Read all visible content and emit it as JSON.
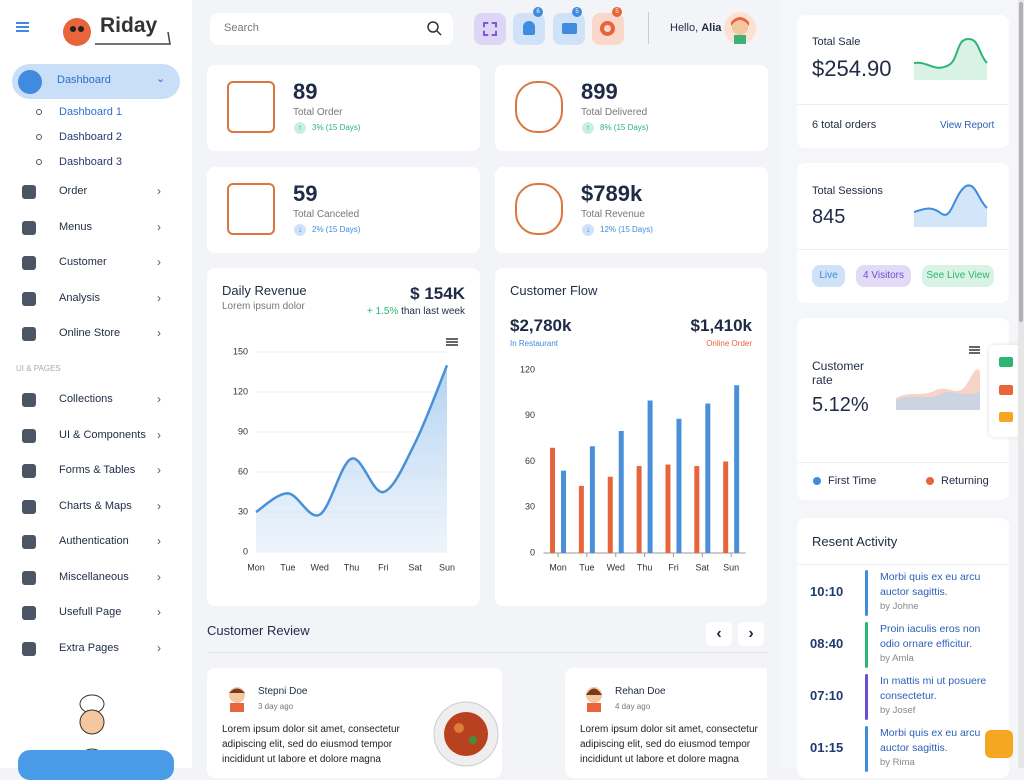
{
  "sidebar": {
    "brand": "Riday",
    "menu": [
      {
        "label": "Dashboard",
        "children": [
          "Dashboard 1",
          "Dashboard 2",
          "Dashboard 3"
        ]
      },
      {
        "label": "Order"
      },
      {
        "label": "Menus"
      },
      {
        "label": "Customer"
      },
      {
        "label": "Analysis"
      },
      {
        "label": "Online Store"
      }
    ],
    "section": "UI & PAGES",
    "pages": [
      "Collections",
      "UI & Components",
      "Forms & Tables",
      "Charts & Maps",
      "Authentication",
      "Miscellaneous",
      "Usefull Page",
      "Extra Pages"
    ]
  },
  "header": {
    "search_placeholder": "Search",
    "badges": [
      "6",
      "5",
      "5"
    ],
    "greeting": "Hello,",
    "user": "Alia"
  },
  "stats": [
    {
      "value": "89",
      "label": "Total Order",
      "change": "3% (15 Days)"
    },
    {
      "value": "899",
      "label": "Total Delivered",
      "change": "8% (15 Days)"
    },
    {
      "value": "59",
      "label": "Total Canceled",
      "change": "2% (15 Days)"
    },
    {
      "value": "$789k",
      "label": "Total Revenue",
      "change": "12% (15 Days)"
    }
  ],
  "chart_data": [
    {
      "type": "line",
      "title": "Daily Revenue",
      "subtitle": "Lorem ipsum dolor",
      "total": "$ 154K",
      "change": "+ 1.5%",
      "change_note": "than last week",
      "categories": [
        "Mon",
        "Tue",
        "Wed",
        "Thu",
        "Fri",
        "Sat",
        "Sun"
      ],
      "values": [
        30,
        44,
        28,
        70,
        45,
        82,
        140
      ],
      "color": "#4a90d9",
      "ylim": [
        0,
        150
      ],
      "yticks": [
        0,
        30,
        60,
        90,
        120,
        150
      ],
      "grid": true
    },
    {
      "type": "bar",
      "title": "Customer Flow",
      "categories": [
        "Mon",
        "Tue",
        "Wed",
        "Thu",
        "Fri",
        "Sat",
        "Sun"
      ],
      "series": [
        {
          "name": "Online Order",
          "total": "$1,410k",
          "color": "#e8643a",
          "values": [
            69,
            44,
            50,
            57,
            58,
            57,
            60
          ]
        },
        {
          "name": "In Restaurant",
          "total": "$2,780k",
          "color": "#4a90d9",
          "values": [
            54,
            70,
            80,
            100,
            88,
            98,
            110
          ]
        }
      ],
      "ylim": [
        0,
        120
      ],
      "yticks": [
        0,
        30,
        60,
        90,
        120
      ],
      "grid": false
    }
  ],
  "reviews": {
    "title": "Customer Review",
    "items": [
      {
        "name": "Stepni Doe",
        "time": "3 day ago",
        "text": "Lorem ipsum dolor sit amet, consectetur adipiscing elit, sed do eiusmod tempor incididunt ut labore et dolore magna"
      },
      {
        "name": "Rehan Doe",
        "time": "4 day ago",
        "text": "Lorem ipsum dolor sit amet, consectetur adipiscing elit, sed do eiusmod tempor incididunt ut labore et dolore magna"
      }
    ]
  },
  "total_sale": {
    "label": "Total Sale",
    "value": "$254.90",
    "orders": "6 total orders",
    "link": "View Report"
  },
  "sessions": {
    "label": "Total Sessions",
    "value": "845",
    "pills": [
      "Live",
      "4 Visitors",
      "See Live View"
    ]
  },
  "customer_rate": {
    "label": "Customer rate",
    "value": "5.12%",
    "legend": [
      "First Time",
      "Returning"
    ]
  },
  "activity": {
    "title": "Resent Activity",
    "items": [
      {
        "time": "10:10",
        "text": "Morbi quis ex eu arcu auctor sagittis.",
        "by": "by Johne"
      },
      {
        "time": "08:40",
        "text": "Proin iaculis eros non odio ornare efficitur.",
        "by": "by Amla"
      },
      {
        "time": "07:10",
        "text": "In mattis mi ut posuere consectetur.",
        "by": "by Josef"
      },
      {
        "time": "01:15",
        "text": "Morbi quis ex eu arcu auctor sagittis.",
        "by": "by Rima"
      }
    ]
  }
}
